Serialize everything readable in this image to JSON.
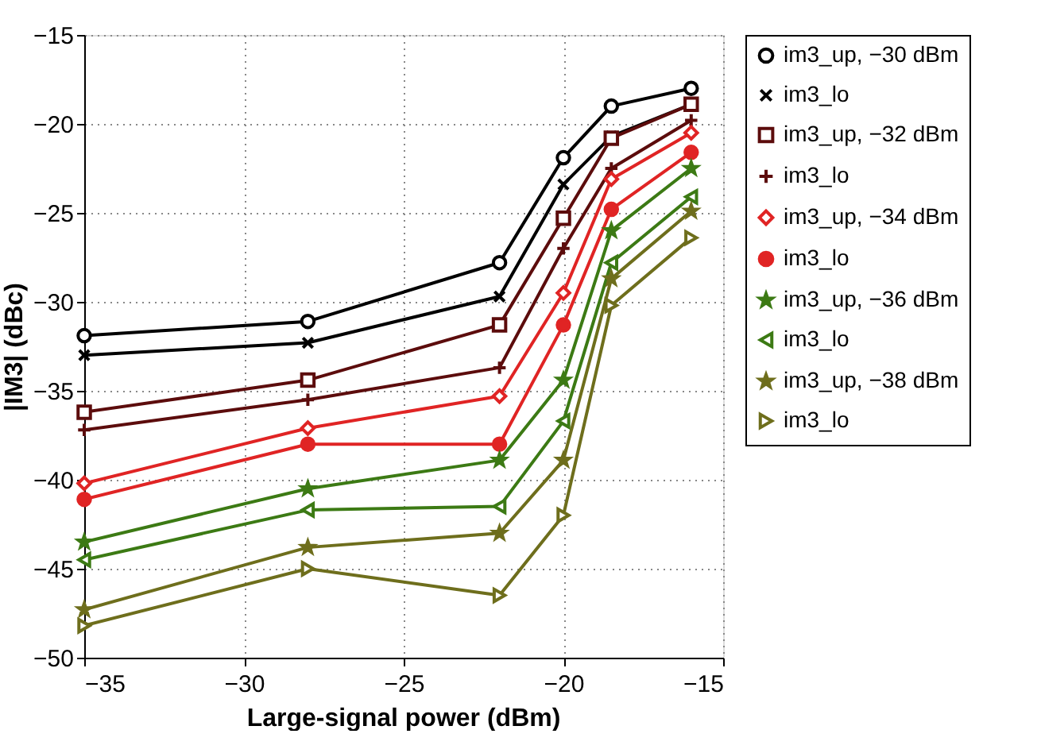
{
  "chart_data": {
    "type": "line",
    "xlabel": "Large-signal power (dBm)",
    "ylabel": "|IM3| (dBc)",
    "x": [
      -35,
      -28,
      -22,
      -20,
      -18.5,
      -16
    ],
    "xlim": [
      -35,
      -15
    ],
    "xticks": [
      -35,
      -30,
      -25,
      -20,
      -15
    ],
    "ylim": [
      -50,
      -15
    ],
    "yticks": [
      -50,
      -45,
      -40,
      -35,
      -30,
      -25,
      -20,
      -15
    ],
    "grid": true,
    "legend": "right",
    "line_style": "solid",
    "series": [
      {
        "name": "im3_up, −30 dBm",
        "color": "#000000",
        "marker": "circle",
        "values": [
          -31.9,
          -31.1,
          -27.8,
          -21.9,
          -19.0,
          -18.0
        ]
      },
      {
        "name": "im3_lo",
        "color": "#000000",
        "marker": "x",
        "values": [
          -33.0,
          -32.3,
          -29.7,
          -23.4,
          -20.7,
          -18.9
        ]
      },
      {
        "name": "im3_up, −32 dBm",
        "color": "#5c0c0c",
        "marker": "square",
        "values": [
          -36.2,
          -34.4,
          -31.3,
          -25.3,
          -20.8,
          -18.9
        ]
      },
      {
        "name": "im3_lo",
        "color": "#5c0c0c",
        "marker": "cross",
        "values": [
          -37.2,
          -35.5,
          -33.7,
          -27.0,
          -22.5,
          -19.8
        ]
      },
      {
        "name": "im3_up, −34 dBm",
        "color": "#e02424",
        "marker": "diamond",
        "values": [
          -40.2,
          -37.1,
          -35.3,
          -29.5,
          -23.1,
          -20.5
        ]
      },
      {
        "name": "im3_lo",
        "color": "#e02424",
        "marker": "dot",
        "values": [
          -41.1,
          -38.0,
          -38.0,
          -31.3,
          -24.8,
          -21.6
        ]
      },
      {
        "name": "im3_up, −36 dBm",
        "color": "#3c7a14",
        "marker": "star",
        "values": [
          -43.5,
          -40.5,
          -38.9,
          -34.4,
          -26.0,
          -22.5
        ]
      },
      {
        "name": "im3_lo",
        "color": "#3c7a14",
        "marker": "triangle-left",
        "values": [
          -44.5,
          -41.7,
          -41.5,
          -36.7,
          -27.8,
          -24.1
        ]
      },
      {
        "name": "im3_up, −38 dBm",
        "color": "#6e6e1c",
        "marker": "star",
        "values": [
          -47.3,
          -43.8,
          -43.0,
          -38.9,
          -28.7,
          -24.9
        ]
      },
      {
        "name": "im3_lo",
        "color": "#6e6e1c",
        "marker": "triangle-right",
        "values": [
          -48.2,
          -45.0,
          -46.5,
          -42.0,
          -30.2,
          -26.4
        ]
      }
    ]
  }
}
